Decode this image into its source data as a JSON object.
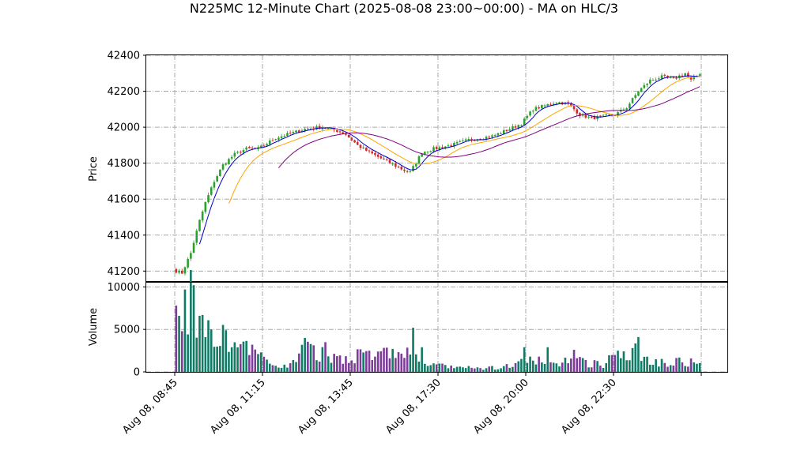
{
  "chart_data": {
    "type": "candlestick",
    "title": "N225MC 12-Minute Chart (2025-08-08 23:00~00:00) - MA on HLC/3",
    "price_panel": {
      "ylabel": "Price",
      "ylim": [
        41140,
        42400
      ],
      "yticks": [
        41200,
        41400,
        41600,
        41800,
        42000,
        42200,
        42400
      ]
    },
    "volume_panel": {
      "ylabel": "Volume",
      "ylim": [
        0,
        10500
      ],
      "yticks": [
        0,
        5000,
        10000
      ]
    },
    "x_ticks": [
      {
        "label": "Aug 08, 08:45",
        "index": 0
      },
      {
        "label": "Aug 08, 11:15",
        "index": 30
      },
      {
        "label": "Aug 08, 13:45",
        "index": 60
      },
      {
        "label": "Aug 08, 17:30",
        "index": 90
      },
      {
        "label": "Aug 08, 20:00",
        "index": 120
      },
      {
        "label": "Aug 08, 22:30",
        "index": 150
      },
      {
        "label": "",
        "index": 180
      }
    ],
    "bar_count": 180,
    "grid": true,
    "colors": {
      "up": "#2ca02c",
      "down": "#d62728",
      "vol_up": "#117a65",
      "vol_down": "#7d3c98",
      "ma_short": "#0000cc",
      "ma_mid": "#ffa500",
      "ma_long": "#800080",
      "grid": "#aaaaaa"
    },
    "close_anchors": [
      [
        0,
        41200
      ],
      [
        2,
        41190
      ],
      [
        5,
        41300
      ],
      [
        8,
        41480
      ],
      [
        10,
        41580
      ],
      [
        13,
        41700
      ],
      [
        16,
        41790
      ],
      [
        20,
        41850
      ],
      [
        24,
        41880
      ],
      [
        28,
        41880
      ],
      [
        30,
        41900
      ],
      [
        34,
        41940
      ],
      [
        38,
        41960
      ],
      [
        44,
        41990
      ],
      [
        50,
        42000
      ],
      [
        55,
        41980
      ],
      [
        58,
        41960
      ],
      [
        62,
        41900
      ],
      [
        66,
        41860
      ],
      [
        72,
        41810
      ],
      [
        78,
        41760
      ],
      [
        80,
        41750
      ],
      [
        84,
        41860
      ],
      [
        88,
        41880
      ],
      [
        94,
        41900
      ],
      [
        100,
        41930
      ],
      [
        108,
        41950
      ],
      [
        114,
        41990
      ],
      [
        118,
        42020
      ],
      [
        122,
        42100
      ],
      [
        126,
        42120
      ],
      [
        130,
        42140
      ],
      [
        134,
        42130
      ],
      [
        138,
        42070
      ],
      [
        142,
        42050
      ],
      [
        146,
        42060
      ],
      [
        150,
        42070
      ],
      [
        154,
        42110
      ],
      [
        158,
        42200
      ],
      [
        162,
        42260
      ],
      [
        166,
        42280
      ],
      [
        170,
        42270
      ],
      [
        174,
        42300
      ],
      [
        176,
        42260
      ],
      [
        179,
        42300
      ]
    ],
    "volume_anchors": [
      [
        0,
        4500
      ],
      [
        2,
        6000
      ],
      [
        5,
        8500
      ],
      [
        7,
        7500
      ],
      [
        10,
        5500
      ],
      [
        14,
        4200
      ],
      [
        18,
        3200
      ],
      [
        22,
        2800
      ],
      [
        26,
        2200
      ],
      [
        30,
        1500
      ],
      [
        34,
        800
      ],
      [
        38,
        600
      ],
      [
        44,
        2600
      ],
      [
        50,
        2000
      ],
      [
        56,
        1600
      ],
      [
        62,
        2100
      ],
      [
        68,
        1800
      ],
      [
        74,
        2400
      ],
      [
        80,
        1900
      ],
      [
        82,
        1500
      ],
      [
        86,
        900
      ],
      [
        92,
        600
      ],
      [
        98,
        500
      ],
      [
        104,
        400
      ],
      [
        110,
        500
      ],
      [
        116,
        800
      ],
      [
        120,
        1600
      ],
      [
        124,
        1200
      ],
      [
        128,
        800
      ],
      [
        134,
        1500
      ],
      [
        140,
        1100
      ],
      [
        146,
        800
      ],
      [
        150,
        2200
      ],
      [
        154,
        2700
      ],
      [
        158,
        2200
      ],
      [
        162,
        1300
      ],
      [
        168,
        1200
      ],
      [
        174,
        1300
      ],
      [
        179,
        900
      ]
    ],
    "volume_spikes": [
      [
        0,
        7800
      ],
      [
        3,
        9700
      ],
      [
        6,
        10200
      ],
      [
        8,
        6600
      ],
      [
        9,
        6700
      ],
      [
        12,
        5000
      ],
      [
        17,
        4900
      ],
      [
        44,
        4000
      ],
      [
        51,
        3500
      ],
      [
        81,
        5200
      ],
      [
        84,
        2900
      ],
      [
        119,
        2900
      ],
      [
        127,
        2900
      ],
      [
        136,
        2600
      ],
      [
        151,
        2500
      ],
      [
        156,
        2800
      ],
      [
        158,
        4100
      ]
    ],
    "ma": [
      {
        "period": 5,
        "color_key": "ma_short",
        "start": 8
      },
      {
        "period": 15,
        "color_key": "ma_mid",
        "start": 18
      },
      {
        "period": 30,
        "color_key": "ma_long",
        "start": 35
      }
    ]
  }
}
